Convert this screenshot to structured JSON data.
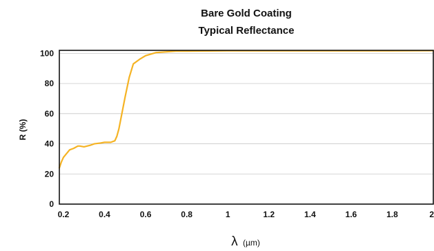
{
  "chart_data": {
    "type": "line",
    "title": "Bare Gold Coating",
    "subtitle": "Typical Reflectance",
    "xlabel_symbol": "λ",
    "xlabel_unit": "(µm)",
    "ylabel": "R (%)",
    "xlim": [
      0.18,
      2.0
    ],
    "ylim": [
      0,
      102
    ],
    "x_ticks": [
      0.2,
      0.4,
      0.6,
      0.8,
      1,
      1.2,
      1.4,
      1.6,
      1.8,
      2
    ],
    "x_tick_labels": [
      "0.2",
      "0.4",
      "0.6",
      "0.8",
      "1",
      "1.2",
      "1.4",
      "1.6",
      "1.8",
      "2"
    ],
    "y_ticks": [
      0,
      20,
      40,
      60,
      80,
      100
    ],
    "y_tick_labels": [
      "0",
      "20",
      "40",
      "60",
      "80",
      "100"
    ],
    "grid": "horizontal",
    "legend": "none",
    "colors": {
      "series": "#f5b324",
      "grid": "#c8c8c8",
      "frame": "#111111",
      "text": "#111111"
    },
    "series": [
      {
        "x": [
          0.18,
          0.19,
          0.2,
          0.23,
          0.25,
          0.27,
          0.28,
          0.3,
          0.33,
          0.35,
          0.38,
          0.4,
          0.43,
          0.45,
          0.46,
          0.47,
          0.48,
          0.5,
          0.52,
          0.54,
          0.57,
          0.6,
          0.65,
          0.7,
          0.75,
          0.8,
          0.9,
          1.0,
          1.2,
          1.4,
          1.6,
          1.8,
          2.0
        ],
        "y": [
          24,
          28,
          31,
          36,
          37,
          38.5,
          38.5,
          38,
          39,
          40,
          40.5,
          41,
          41,
          42,
          45,
          50,
          57,
          71,
          84,
          93,
          96,
          98.5,
          100.5,
          101,
          101.5,
          101.5,
          101.6,
          101.7,
          101.7,
          101.7,
          101.7,
          101.7,
          101.8
        ]
      }
    ]
  }
}
